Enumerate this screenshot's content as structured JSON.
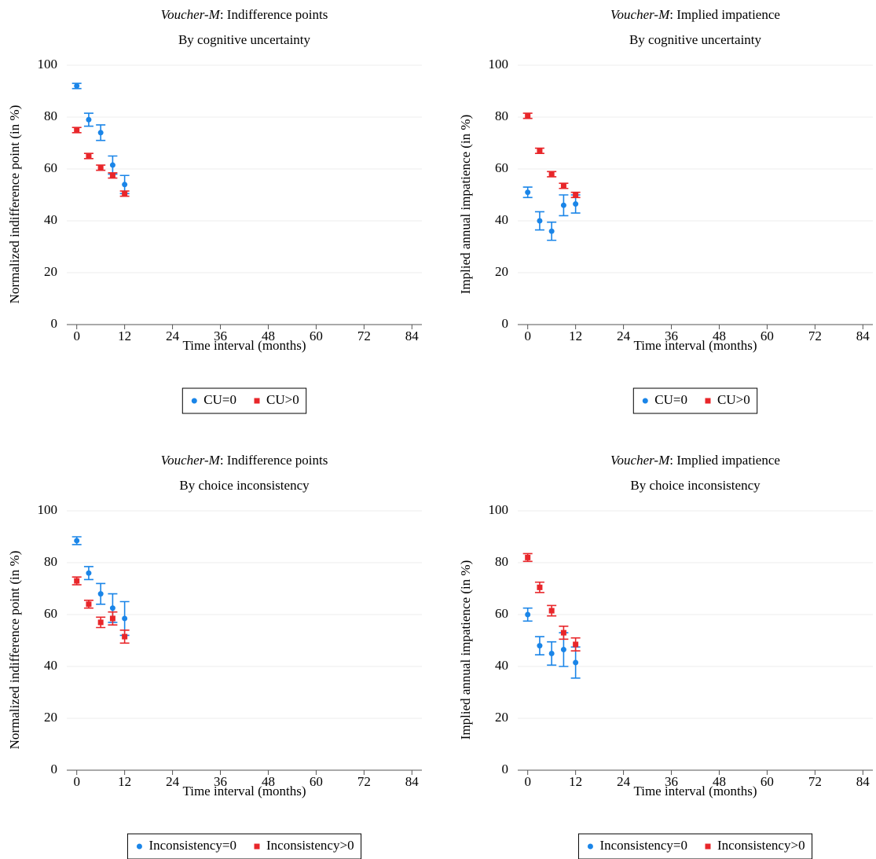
{
  "chart_data": [
    {
      "type": "scatter",
      "title_parts": [
        "Voucher-M",
        ": Indifference points"
      ],
      "subtitle": "By cognitive uncertainty",
      "xlabel": "Time interval (months)",
      "ylabel": "Normalized indifference point (in %)",
      "x": [
        0,
        3,
        6,
        9,
        12
      ],
      "xlim": [
        -2.5,
        86.5
      ],
      "ylim": [
        0,
        100
      ],
      "xticks": [
        0,
        12,
        24,
        36,
        48,
        60,
        72,
        84
      ],
      "yticks": [
        0,
        20,
        40,
        60,
        80,
        100
      ],
      "grid": true,
      "series": [
        {
          "name": "CU=0",
          "color": "#1a85e8",
          "marker": "circle",
          "values": [
            92,
            79,
            74,
            61.5,
            54
          ],
          "errors": [
            1,
            2.5,
            3,
            3.5,
            3.5
          ]
        },
        {
          "name": "CU>0",
          "color": "#e8262a",
          "marker": "square",
          "values": [
            75,
            65,
            60.5,
            57.5,
            50.5
          ],
          "errors": [
            1,
            1,
            1,
            1,
            1
          ]
        }
      ]
    },
    {
      "type": "scatter",
      "title_parts": [
        "Voucher-M",
        ": Implied impatience"
      ],
      "subtitle": "By cognitive uncertainty",
      "xlabel": "Time interval (months)",
      "ylabel": "Implied annual impatience (in %)",
      "x": [
        0,
        3,
        6,
        9,
        12
      ],
      "xlim": [
        -2.5,
        86.5
      ],
      "ylim": [
        0,
        100
      ],
      "xticks": [
        0,
        12,
        24,
        36,
        48,
        60,
        72,
        84
      ],
      "yticks": [
        0,
        20,
        40,
        60,
        80,
        100
      ],
      "grid": true,
      "series": [
        {
          "name": "CU=0",
          "color": "#1a85e8",
          "marker": "circle",
          "values": [
            51,
            40,
            36,
            46,
            46.5
          ],
          "errors": [
            2,
            3.5,
            3.5,
            4,
            3.5
          ]
        },
        {
          "name": "CU>0",
          "color": "#e8262a",
          "marker": "square",
          "values": [
            80.5,
            67,
            58,
            53.5,
            50
          ],
          "errors": [
            1,
            1,
            1,
            1,
            1
          ]
        }
      ]
    },
    {
      "type": "scatter",
      "title_parts": [
        "Voucher-M",
        ": Indifference points"
      ],
      "subtitle": "By choice inconsistency",
      "xlabel": "Time interval (months)",
      "ylabel": "Normalized indifference point (in %)",
      "x": [
        0,
        3,
        6,
        9,
        12
      ],
      "xlim": [
        -2.5,
        86.5
      ],
      "ylim": [
        0,
        100
      ],
      "xticks": [
        0,
        12,
        24,
        36,
        48,
        60,
        72,
        84
      ],
      "yticks": [
        0,
        20,
        40,
        60,
        80,
        100
      ],
      "grid": true,
      "series": [
        {
          "name": "Inconsistency=0",
          "color": "#1a85e8",
          "marker": "circle",
          "values": [
            88.5,
            76,
            68,
            62.5,
            58.5
          ],
          "errors": [
            1.5,
            2.5,
            4,
            5.5,
            6.5
          ]
        },
        {
          "name": "Inconsistency>0",
          "color": "#e8262a",
          "marker": "square",
          "values": [
            73,
            64,
            57,
            58.5,
            51.5
          ],
          "errors": [
            1.5,
            1.5,
            2,
            2.5,
            2.5
          ]
        }
      ]
    },
    {
      "type": "scatter",
      "title_parts": [
        "Voucher-M",
        ": Implied impatience"
      ],
      "subtitle": "By choice inconsistency",
      "xlabel": "Time interval (months)",
      "ylabel": "Implied annual impatience (in %)",
      "x": [
        0,
        3,
        6,
        9,
        12
      ],
      "xlim": [
        -2.5,
        86.5
      ],
      "ylim": [
        0,
        100
      ],
      "xticks": [
        0,
        12,
        24,
        36,
        48,
        60,
        72,
        84
      ],
      "yticks": [
        0,
        20,
        40,
        60,
        80,
        100
      ],
      "grid": true,
      "series": [
        {
          "name": "Inconsistency=0",
          "color": "#1a85e8",
          "marker": "circle",
          "values": [
            60,
            48,
            45,
            46.5,
            41.5
          ],
          "errors": [
            2.5,
            3.5,
            4.5,
            6.5,
            6
          ]
        },
        {
          "name": "Inconsistency>0",
          "color": "#e8262a",
          "marker": "square",
          "values": [
            82,
            70.5,
            61.5,
            53,
            48.5
          ],
          "errors": [
            1.5,
            2,
            2,
            2.5,
            2.5
          ]
        }
      ]
    }
  ]
}
